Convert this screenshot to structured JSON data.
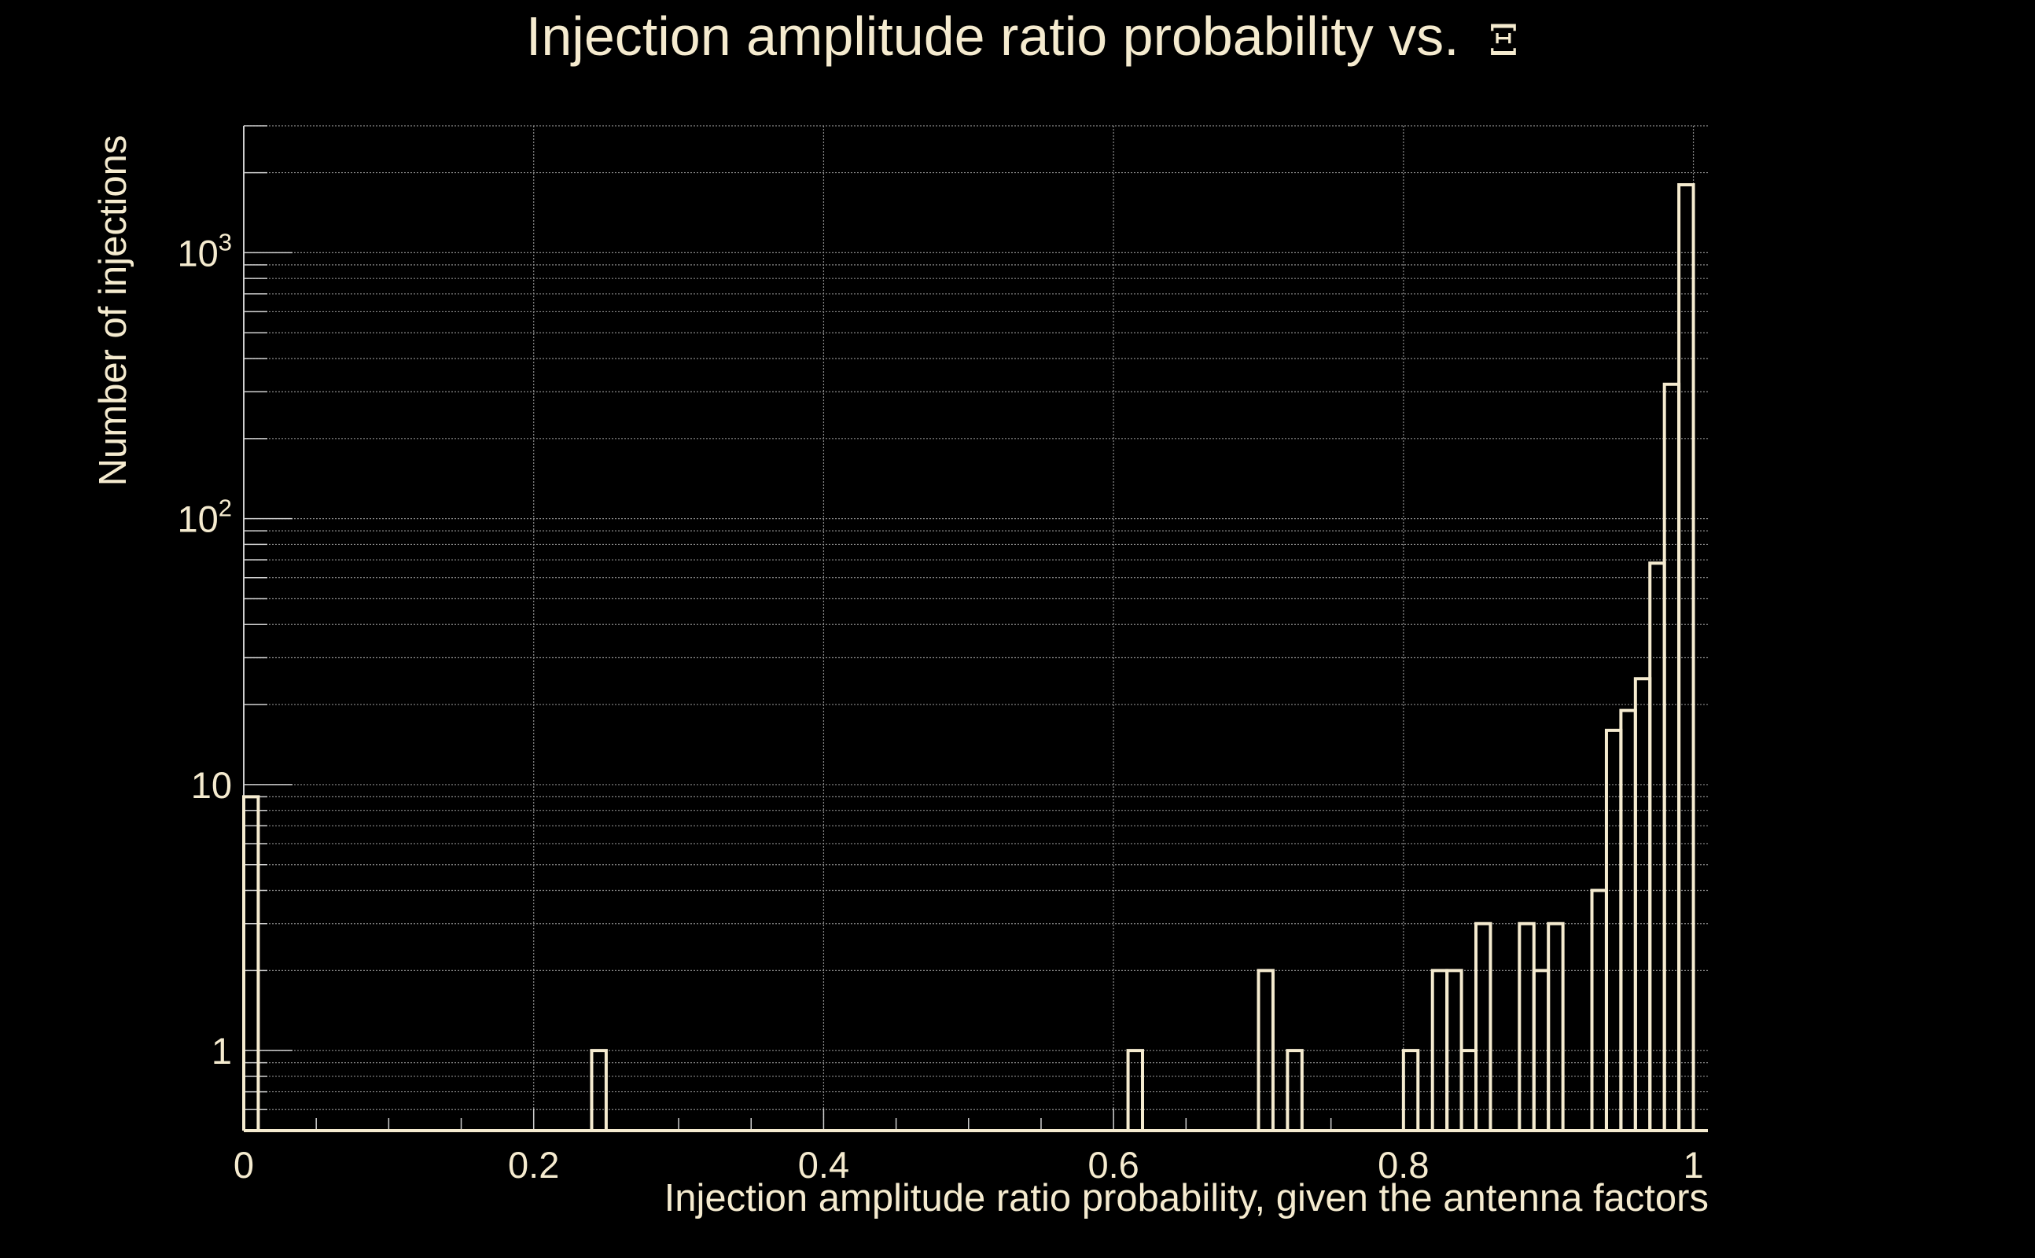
{
  "chart_data": {
    "type": "histogram",
    "title": "Injection amplitude ratio probability vs.",
    "title_symbol": "Ξ",
    "xlabel": "Injection amplitude ratio probability, given the antenna factors",
    "ylabel": "Number of injections",
    "xlim": [
      0,
      1.01
    ],
    "ylim": [
      0.5,
      3000
    ],
    "y_scale": "log",
    "grid": true,
    "legend": "none",
    "x_ticks": [
      {
        "value": 0,
        "label": "0"
      },
      {
        "value": 0.2,
        "label": "0.2"
      },
      {
        "value": 0.4,
        "label": "0.4"
      },
      {
        "value": 0.6,
        "label": "0.6"
      },
      {
        "value": 0.8,
        "label": "0.8"
      },
      {
        "value": 1,
        "label": "1"
      }
    ],
    "y_ticks": [
      {
        "value": 1,
        "base": "1",
        "exp": ""
      },
      {
        "value": 10,
        "base": "10",
        "exp": ""
      },
      {
        "value": 100,
        "base": "10",
        "exp": "2"
      },
      {
        "value": 1000,
        "base": "10",
        "exp": "3"
      }
    ],
    "bin_width": 0.01,
    "bins": [
      {
        "x": 0.0,
        "count": 9
      },
      {
        "x": 0.24,
        "count": 1
      },
      {
        "x": 0.61,
        "count": 1
      },
      {
        "x": 0.7,
        "count": 2
      },
      {
        "x": 0.72,
        "count": 1
      },
      {
        "x": 0.8,
        "count": 1
      },
      {
        "x": 0.82,
        "count": 2
      },
      {
        "x": 0.83,
        "count": 2
      },
      {
        "x": 0.84,
        "count": 1
      },
      {
        "x": 0.85,
        "count": 3
      },
      {
        "x": 0.88,
        "count": 3
      },
      {
        "x": 0.89,
        "count": 2
      },
      {
        "x": 0.9,
        "count": 3
      },
      {
        "x": 0.93,
        "count": 4
      },
      {
        "x": 0.94,
        "count": 16
      },
      {
        "x": 0.95,
        "count": 19
      },
      {
        "x": 0.96,
        "count": 25
      },
      {
        "x": 0.97,
        "count": 68
      },
      {
        "x": 0.98,
        "count": 320
      },
      {
        "x": 0.99,
        "count": 1800
      }
    ],
    "color": "#f5ebcf"
  }
}
